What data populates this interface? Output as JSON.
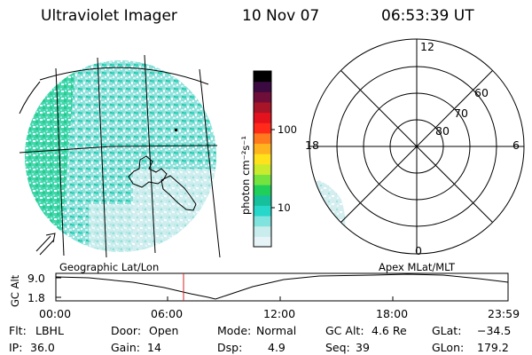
{
  "header": {
    "instrument": "Ultraviolet Imager",
    "date": "10 Nov 07",
    "time": "06:53:39 UT"
  },
  "colorbar": {
    "unit_label": "photon cm⁻²s⁻¹",
    "ticks": [
      "100",
      "10"
    ],
    "colors": [
      "#e6f4f8",
      "#c9ecec",
      "#80e3dd",
      "#27d7c9",
      "#16c09c",
      "#1fcf5a",
      "#74e33f",
      "#c9ea2d",
      "#ffe21b",
      "#ffb31e",
      "#ff7a1f",
      "#ff2a1a",
      "#e3121c",
      "#a81428",
      "#6f0e38",
      "#3a0a40",
      "#000000"
    ]
  },
  "polar": {
    "mlt_labels": {
      "top": "12",
      "left": "18",
      "right": "6",
      "bottom": "0"
    },
    "lat_labels": [
      "60",
      "70",
      "80"
    ]
  },
  "timeline": {
    "left_label": "Geographic Lat/Lon",
    "right_label": "Apex  MLat/MLT",
    "y_axis_label": "GC Alt",
    "y_ticks": [
      "9.0",
      "1.8"
    ],
    "x_ticks": [
      "00:00",
      "06:00",
      "12:00",
      "18:00",
      "23:59"
    ],
    "current_time_marker": "06:53:39"
  },
  "status": {
    "flt_label": "Flt:",
    "flt_value": "LBHL",
    "ip_label": "IP:",
    "ip_value": "36.0",
    "door_label": "Door:",
    "door_value": "Open",
    "gain_label": "Gain:",
    "gain_value": "14",
    "mode_label": "Mode:",
    "mode_value": "Normal",
    "dsp_label": "Dsp:",
    "dsp_value": "4.9",
    "gcalt_label": "GC Alt:",
    "gcalt_value": "4.6 Re",
    "seq_label": "Seq:",
    "seq_value": "39",
    "glat_label": "GLat:",
    "glat_value": "−34.5",
    "glon_label": "GLon:",
    "glon_value": "179.2"
  }
}
